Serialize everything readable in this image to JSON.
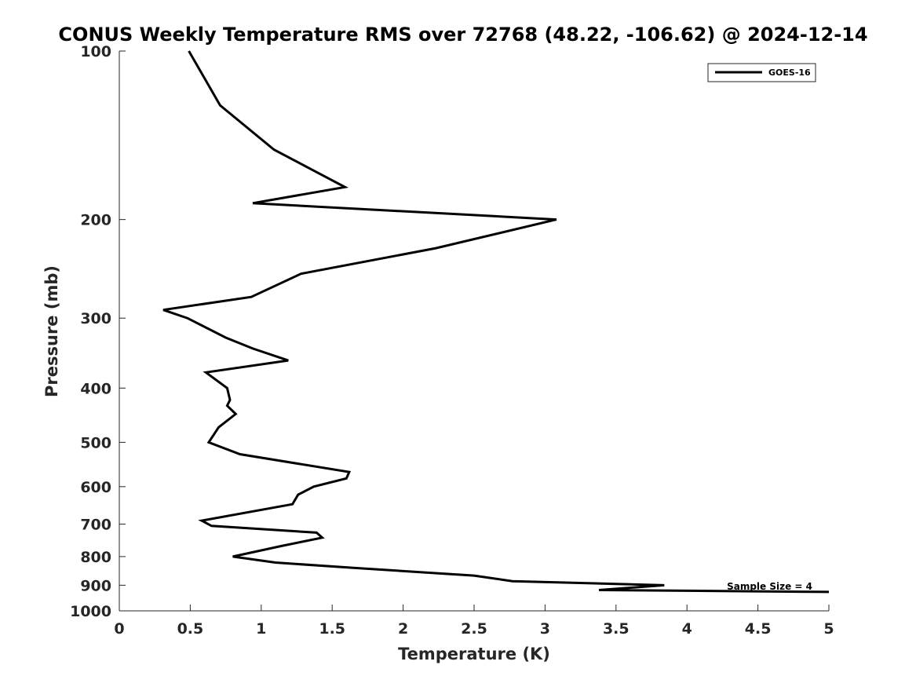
{
  "chart_data": {
    "type": "line",
    "title": "CONUS Weekly Temperature RMS over 72768 (48.22, -106.62) @ 2024-12-14",
    "xlabel": "Temperature (K)",
    "ylabel": "Pressure (mb)",
    "xlim": [
      0,
      5
    ],
    "ylim": [
      100,
      1000
    ],
    "y_scale": "log",
    "y_reversed": true,
    "grid": false,
    "legend_position": "top-right",
    "x_ticks": [
      0,
      0.5,
      1,
      1.5,
      2,
      2.5,
      3,
      3.5,
      4,
      4.5,
      5
    ],
    "x_tick_labels": [
      "0",
      "0.5",
      "1",
      "1.5",
      "2",
      "2.5",
      "3",
      "3.5",
      "4",
      "4.5",
      "5"
    ],
    "y_ticks": [
      100,
      200,
      300,
      400,
      500,
      600,
      700,
      800,
      900,
      1000
    ],
    "y_tick_labels": [
      "100",
      "200",
      "300",
      "400",
      "500",
      "600",
      "700",
      "800",
      "900",
      "1000"
    ],
    "annotation": "Sample Size = 4",
    "series": [
      {
        "name": "GOES-16",
        "color": "#000000",
        "points": [
          {
            "x": 0.49,
            "y": 100
          },
          {
            "x": 0.71,
            "y": 125
          },
          {
            "x": 1.09,
            "y": 150
          },
          {
            "x": 1.59,
            "y": 175
          },
          {
            "x": 0.94,
            "y": 187
          },
          {
            "x": 3.08,
            "y": 200
          },
          {
            "x": 2.23,
            "y": 225
          },
          {
            "x": 1.28,
            "y": 250
          },
          {
            "x": 0.93,
            "y": 275
          },
          {
            "x": 0.31,
            "y": 290
          },
          {
            "x": 0.48,
            "y": 300
          },
          {
            "x": 0.75,
            "y": 325
          },
          {
            "x": 0.94,
            "y": 340
          },
          {
            "x": 1.19,
            "y": 357
          },
          {
            "x": 0.61,
            "y": 375
          },
          {
            "x": 0.76,
            "y": 400
          },
          {
            "x": 0.78,
            "y": 420
          },
          {
            "x": 0.76,
            "y": 430
          },
          {
            "x": 0.82,
            "y": 445
          },
          {
            "x": 0.7,
            "y": 470
          },
          {
            "x": 0.63,
            "y": 500
          },
          {
            "x": 0.85,
            "y": 525
          },
          {
            "x": 1.62,
            "y": 565
          },
          {
            "x": 1.6,
            "y": 580
          },
          {
            "x": 1.37,
            "y": 600
          },
          {
            "x": 1.26,
            "y": 620
          },
          {
            "x": 1.22,
            "y": 645
          },
          {
            "x": 0.58,
            "y": 690
          },
          {
            "x": 0.65,
            "y": 705
          },
          {
            "x": 1.39,
            "y": 725
          },
          {
            "x": 1.43,
            "y": 740
          },
          {
            "x": 1.15,
            "y": 765
          },
          {
            "x": 0.8,
            "y": 800
          },
          {
            "x": 1.1,
            "y": 820
          },
          {
            "x": 1.65,
            "y": 838
          },
          {
            "x": 2.5,
            "y": 865
          },
          {
            "x": 2.77,
            "y": 885
          },
          {
            "x": 3.84,
            "y": 900
          },
          {
            "x": 3.38,
            "y": 918
          },
          {
            "x": 5.0,
            "y": 925
          }
        ]
      }
    ]
  }
}
